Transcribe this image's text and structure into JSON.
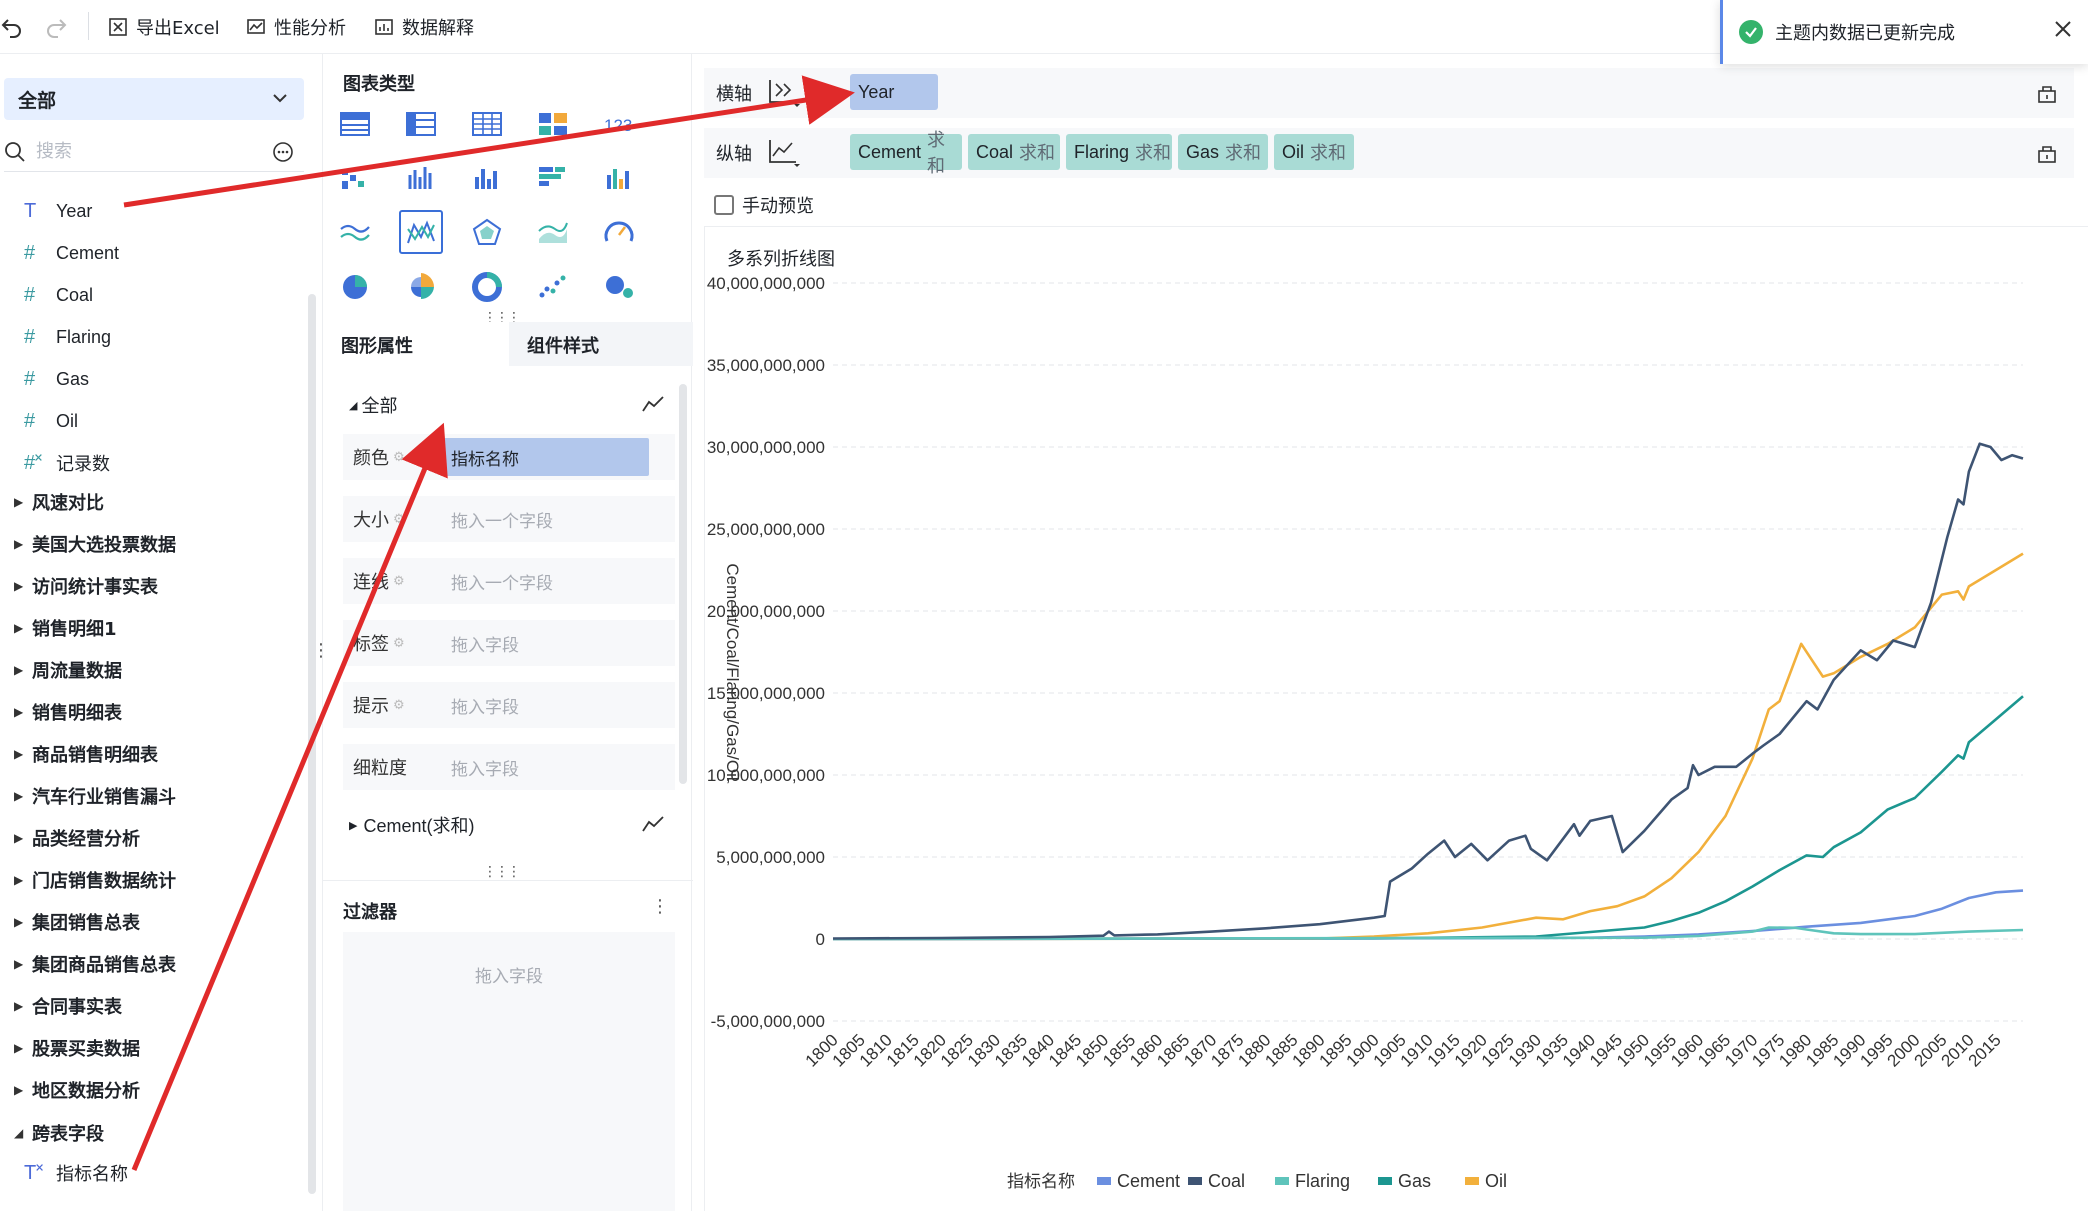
{
  "toolbar": {
    "export_label": "导出Excel",
    "perf_label": "性能分析",
    "explain_label": "数据解释"
  },
  "left": {
    "scope": "全部",
    "search_placeholder": "搜索",
    "fields": [
      {
        "type": "text",
        "name": "Year"
      },
      {
        "type": "number",
        "name": "Cement"
      },
      {
        "type": "number",
        "name": "Coal"
      },
      {
        "type": "number",
        "name": "Flaring"
      },
      {
        "type": "number",
        "name": "Gas"
      },
      {
        "type": "number",
        "name": "Oil"
      },
      {
        "type": "number-calc",
        "name": "记录数"
      }
    ],
    "groups": [
      "风速对比",
      "美国大选投票数据",
      "访问统计事实表",
      "销售明细1",
      "周流量数据",
      "销售明细表",
      "商品销售明细表",
      "汽车行业销售漏斗",
      "品类经营分析",
      "门店销售数据统计",
      "集团销售总表",
      "集团商品销售总表",
      "合同事实表",
      "股票买卖数据",
      "地区数据分析"
    ],
    "cross_group": "跨表字段",
    "cross_field": "指标名称"
  },
  "middle": {
    "chart_types_title": "图表类型",
    "tab_props": "图形属性",
    "tab_style": "组件样式",
    "all_section": "全部",
    "props": [
      {
        "label": "颜色",
        "value": "指标名称",
        "filled": true
      },
      {
        "label": "大小",
        "value": "拖入一个字段",
        "filled": false
      },
      {
        "label": "连线",
        "value": "拖入一个字段",
        "filled": false
      },
      {
        "label": "标签",
        "value": "拖入字段",
        "filled": false
      },
      {
        "label": "提示",
        "value": "拖入字段",
        "filled": false
      },
      {
        "label": "细粒度",
        "value": "拖入字段",
        "filled": false
      }
    ],
    "series_section": "Cement(求和)",
    "filter_title": "过滤器",
    "filter_placeholder": "拖入字段"
  },
  "right": {
    "x_axis_label": "横轴",
    "y_axis_label": "纵轴",
    "x_pill": "Year",
    "y_pills": [
      {
        "name": "Cement",
        "agg": "求和"
      },
      {
        "name": "Coal",
        "agg": "求和"
      },
      {
        "name": "Flaring",
        "agg": "求和"
      },
      {
        "name": "Gas",
        "agg": "求和"
      },
      {
        "name": "Oil",
        "agg": "求和"
      }
    ],
    "manual_preview": "手动预览",
    "chart_title": "多系列折线图"
  },
  "toast": {
    "message": "主题内数据已更新完成"
  },
  "chart_data": {
    "type": "line",
    "title": "多系列折线图",
    "xlabel": "",
    "ylabel": "Cement/Coal/Flaring/Gas/Oil",
    "legend_title": "指标名称",
    "legend_position": "bottom",
    "grid": true,
    "xlim": [
      1800,
      2020
    ],
    "ylim": [
      -5000000000,
      40000000000
    ],
    "y_ticks": [
      -5000000000,
      0,
      5000000000,
      10000000000,
      15000000000,
      20000000000,
      25000000000,
      30000000000,
      35000000000,
      40000000000
    ],
    "y_tick_labels": [
      "-5,000,000,000",
      "0",
      "5,000,000,000",
      "10,000,000,000",
      "15,000,000,000",
      "20,000,000,000",
      "25,000,000,000",
      "30,000,000,000",
      "35,000,000,000",
      "40,000,000,000"
    ],
    "x_tick_labels": [
      "1800",
      "1805",
      "1810",
      "1815",
      "1820",
      "1825",
      "1830",
      "1835",
      "1840",
      "1845",
      "1850",
      "1855",
      "1860",
      "1865",
      "1870",
      "1875",
      "1880",
      "1885",
      "1890",
      "1895",
      "1900",
      "1905",
      "1910",
      "1915",
      "1920",
      "1925",
      "1930",
      "1935",
      "1940",
      "1945",
      "1950",
      "1955",
      "1960",
      "1965",
      "1970",
      "1975",
      "1980",
      "1985",
      "1990",
      "1995",
      "2000",
      "2005",
      "2010",
      "2015"
    ],
    "series": [
      {
        "name": "Cement",
        "color": "#6b8fe0",
        "x": [
          1800,
          1920,
          1940,
          1950,
          1960,
          1970,
          1980,
          1990,
          2000,
          2005,
          2010,
          2015,
          2020
        ],
        "y": [
          0,
          50000000,
          80000000,
          150000000,
          280000000,
          480000000,
          750000000,
          980000000,
          1400000000,
          1850000000,
          2500000000,
          2850000000,
          2950000000
        ]
      },
      {
        "name": "Coal",
        "color": "#3e5473",
        "x": [
          1800,
          1820,
          1840,
          1850,
          1851,
          1852,
          1860,
          1870,
          1880,
          1890,
          1900,
          1902,
          1903,
          1907,
          1910,
          1913,
          1915,
          1918,
          1921,
          1925,
          1928,
          1929,
          1932,
          1937,
          1938,
          1940,
          1944,
          1946,
          1950,
          1955,
          1958,
          1959,
          1960,
          1963,
          1967,
          1970,
          1972,
          1975,
          1980,
          1982,
          1985,
          1990,
          1993,
          1996,
          2000,
          2003,
          2006,
          2008,
          2009,
          2010,
          2012,
          2014,
          2016,
          2018,
          2020
        ],
        "y": [
          30000000,
          60000000,
          120000000,
          200000000,
          450000000,
          220000000,
          280000000,
          450000000,
          650000000,
          900000000,
          1300000000,
          1400000000,
          3500000000,
          4300000000,
          5200000000,
          6000000000,
          5000000000,
          5800000000,
          4800000000,
          6000000000,
          6300000000,
          5500000000,
          4800000000,
          7000000000,
          6300000000,
          7200000000,
          7500000000,
          5300000000,
          6600000000,
          8500000000,
          9200000000,
          10600000000,
          10000000000,
          10500000000,
          10500000000,
          11300000000,
          11800000000,
          12500000000,
          14500000000,
          14000000000,
          15800000000,
          17600000000,
          17000000000,
          18200000000,
          17800000000,
          20500000000,
          24500000000,
          26800000000,
          26500000000,
          28500000000,
          30200000000,
          30000000000,
          29200000000,
          29500000000,
          29300000000
        ]
      },
      {
        "name": "Flaring",
        "color": "#5fc4bb",
        "x": [
          1800,
          1950,
          1960,
          1970,
          1973,
          1978,
          1980,
          1985,
          1990,
          2000,
          2010,
          2020
        ],
        "y": [
          0,
          80000000,
          180000000,
          450000000,
          700000000,
          680000000,
          580000000,
          350000000,
          300000000,
          300000000,
          450000000,
          550000000
        ]
      },
      {
        "name": "Gas",
        "color": "#1c9690",
        "x": [
          1800,
          1900,
          1930,
          1950,
          1955,
          1960,
          1965,
          1970,
          1975,
          1980,
          1983,
          1985,
          1990,
          1995,
          2000,
          2005,
          2008,
          2009,
          2010,
          2015,
          2020
        ],
        "y": [
          0,
          30000000,
          150000000,
          700000000,
          1100000000,
          1600000000,
          2300000000,
          3200000000,
          4200000000,
          5100000000,
          5000000000,
          5600000000,
          6500000000,
          7900000000,
          8600000000,
          10200000000,
          11200000000,
          11000000000,
          12000000000,
          13400000000,
          14800000000
        ]
      },
      {
        "name": "Oil",
        "color": "#f2b03c",
        "x": [
          1800,
          1890,
          1900,
          1910,
          1920,
          1930,
          1935,
          1940,
          1945,
          1950,
          1955,
          1960,
          1965,
          1970,
          1973,
          1975,
          1979,
          1981,
          1983,
          1985,
          1990,
          1995,
          2000,
          2005,
          2008,
          2009,
          2010,
          2015,
          2020
        ],
        "y": [
          0,
          30000000,
          150000000,
          350000000,
          700000000,
          1300000000,
          1200000000,
          1700000000,
          2000000000,
          2600000000,
          3700000000,
          5300000000,
          7500000000,
          11000000000,
          14000000000,
          14500000000,
          18000000000,
          17000000000,
          16000000000,
          16200000000,
          17200000000,
          18000000000,
          19000000000,
          21000000000,
          21200000000,
          20700000000,
          21500000000,
          22500000000,
          23500000000
        ]
      }
    ]
  }
}
